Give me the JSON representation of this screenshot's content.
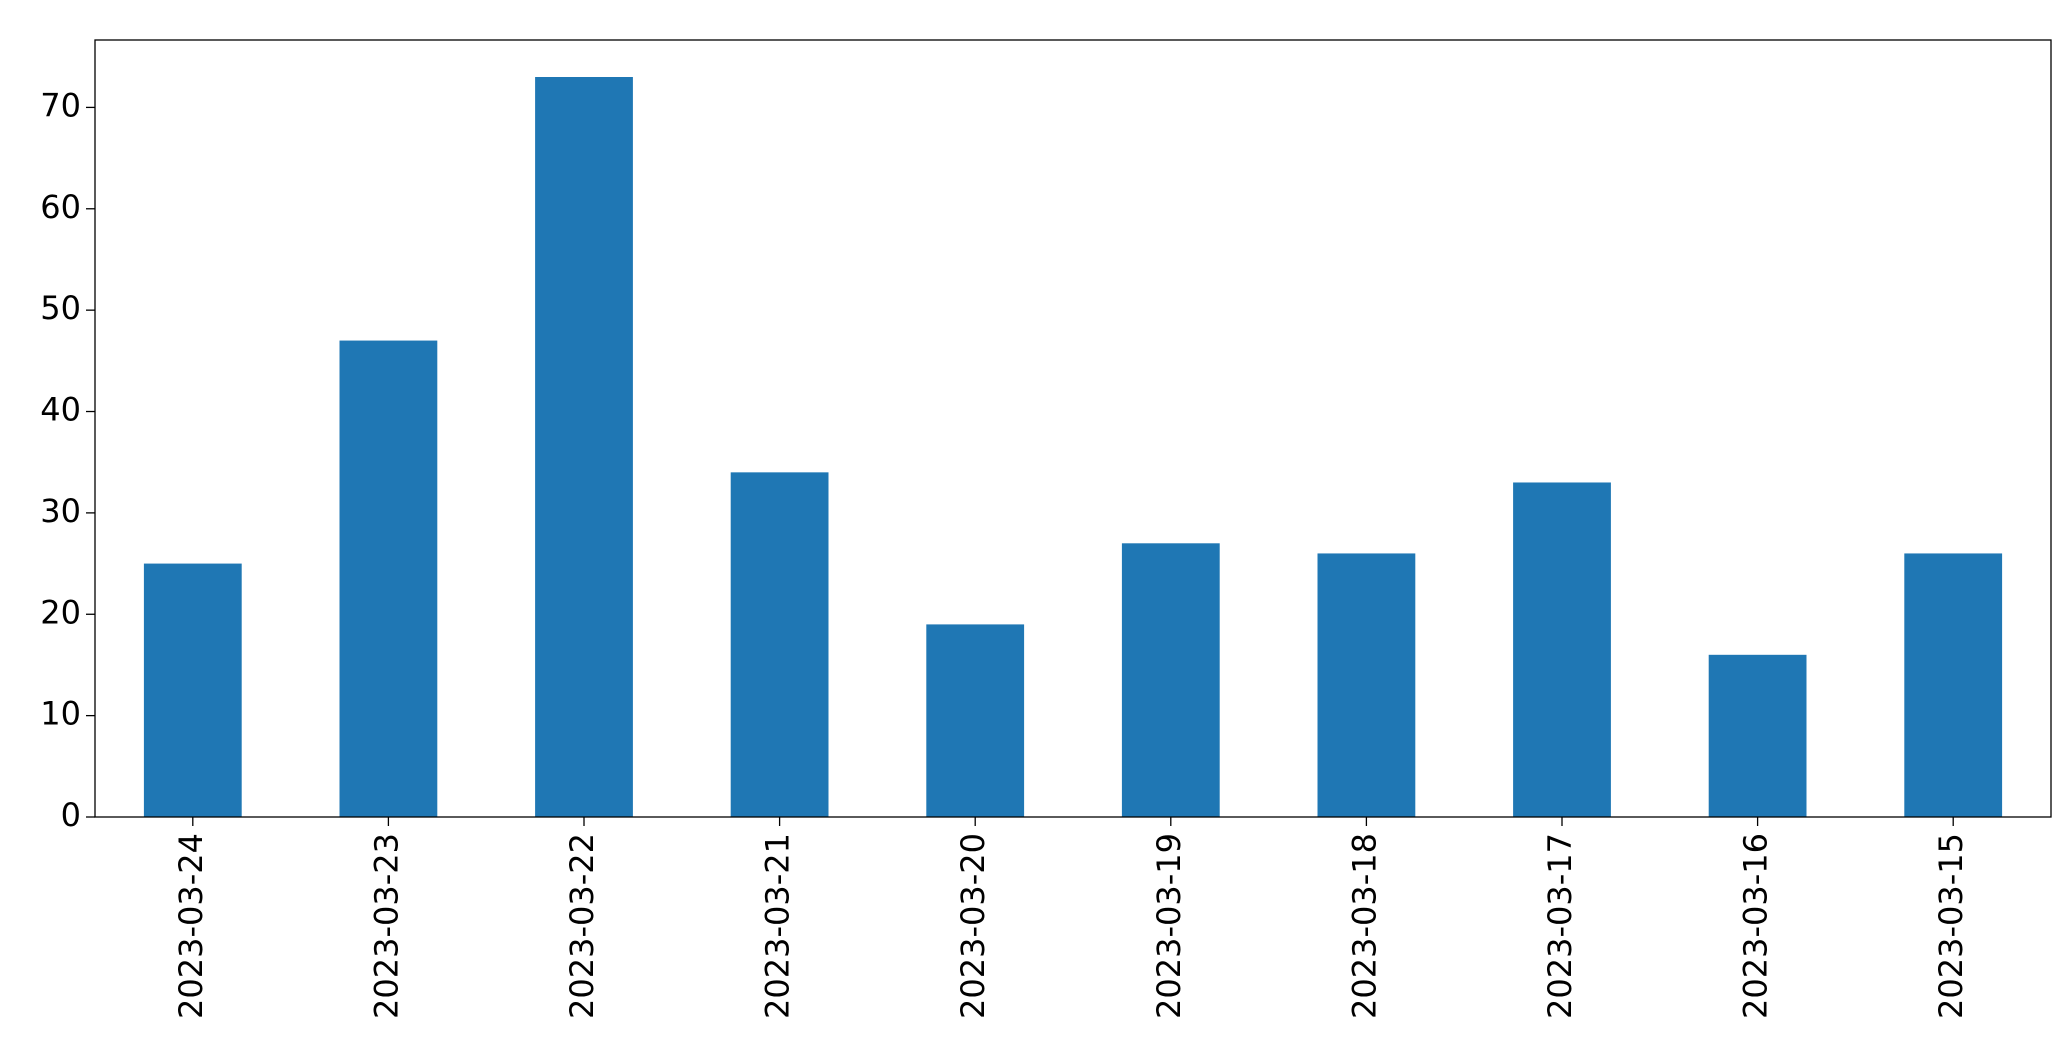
{
  "chart_data": {
    "type": "bar",
    "categories": [
      "2023-03-24",
      "2023-03-23",
      "2023-03-22",
      "2023-03-21",
      "2023-03-20",
      "2023-03-19",
      "2023-03-18",
      "2023-03-17",
      "2023-03-16",
      "2023-03-15"
    ],
    "values": [
      25,
      47,
      73,
      34,
      19,
      27,
      26,
      33,
      16,
      26
    ],
    "color": "#1f77b4",
    "ylim": [
      0,
      76.65
    ],
    "yticks": [
      0,
      10,
      20,
      30,
      40,
      50,
      60,
      70
    ],
    "grid": false
  }
}
